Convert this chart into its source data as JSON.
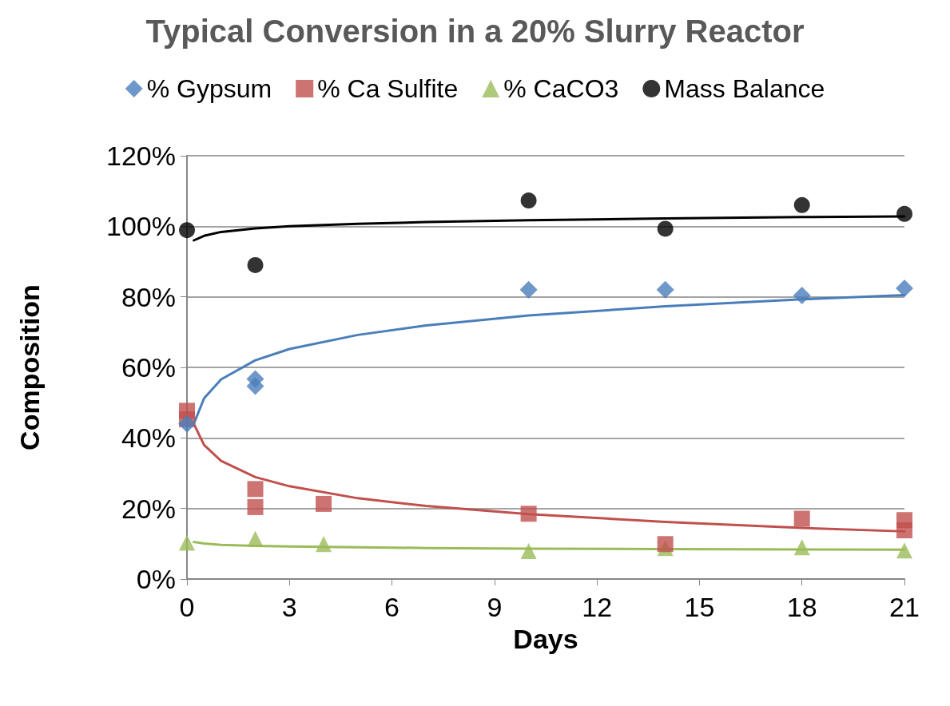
{
  "chart_data": {
    "type": "scatter",
    "title": "Typical Conversion in a 20% Slurry Reactor",
    "xlabel": "Days",
    "ylabel": "Composition",
    "xlim": [
      0,
      21
    ],
    "xticks": [
      0,
      3,
      6,
      9,
      12,
      15,
      18,
      21
    ],
    "ylim": [
      0,
      120
    ],
    "yticks": [
      {
        "value": 0,
        "label": "0%"
      },
      {
        "value": 20,
        "label": "20%"
      },
      {
        "value": 40,
        "label": "40%"
      },
      {
        "value": 60,
        "label": "60%"
      },
      {
        "value": 80,
        "label": "80%"
      },
      {
        "value": 100,
        "label": "100%"
      },
      {
        "value": 120,
        "label": "120%"
      }
    ],
    "grid": "y",
    "legend": "top",
    "series": [
      {
        "name": "% Gypsum",
        "color": "#4a7ebb",
        "marker": "diamond",
        "x": [
          0,
          2,
          2,
          10,
          14,
          18,
          21
        ],
        "values": [
          44,
          56.7,
          54.7,
          82,
          82,
          80.4,
          82.4
        ]
      },
      {
        "name": "% Ca Sulfite",
        "color": "#c0504d",
        "marker": "square",
        "x": [
          0,
          0,
          2,
          2,
          4,
          10,
          14,
          18,
          21,
          21
        ],
        "values": [
          47.7,
          45.3,
          25.5,
          20.4,
          21.3,
          18.5,
          9.9,
          17.1,
          16.7,
          13.8
        ]
      },
      {
        "name": "% CaCO3",
        "color": "#9bbb59",
        "marker": "triangle",
        "x": [
          0,
          2,
          4,
          10,
          14,
          18,
          21
        ],
        "values": [
          10.3,
          11.4,
          9.9,
          7.9,
          8.8,
          9,
          8.1
        ]
      },
      {
        "name": "Mass Balance",
        "color": "#000000",
        "marker": "circle",
        "x": [
          0,
          2,
          10,
          14,
          18,
          21
        ],
        "values": [
          98.9,
          89,
          107.3,
          99.3,
          106,
          103.5
        ]
      },
      {
        "type": "line",
        "color": "#4a7ebb",
        "marker": "none",
        "x": [
          0.2,
          0.5,
          1,
          2,
          3,
          5,
          7,
          10,
          14,
          18,
          21
        ],
        "values": [
          44,
          51.2,
          56.6,
          62,
          65.2,
          69.2,
          71.9,
          74.7,
          77.3,
          79.3,
          80.5
        ]
      },
      {
        "type": "line",
        "color": "#c0504d",
        "marker": "none",
        "x": [
          0.2,
          0.5,
          1,
          2,
          3,
          5,
          7,
          10,
          14,
          18,
          21
        ],
        "values": [
          44,
          38,
          33.5,
          28.9,
          26.3,
          22.9,
          20.7,
          18.4,
          16.2,
          14.5,
          13.5
        ]
      },
      {
        "type": "line",
        "color": "#9bbb59",
        "marker": "none",
        "x": [
          0.2,
          0.5,
          1,
          2,
          3,
          5,
          7,
          10,
          14,
          18,
          21
        ],
        "values": [
          10.5,
          10.1,
          9.7,
          9.4,
          9.2,
          9,
          8.8,
          8.6,
          8.5,
          8.4,
          8.3
        ]
      },
      {
        "type": "line",
        "color": "#000000",
        "marker": "none",
        "x": [
          0.2,
          0.5,
          1,
          2,
          3,
          5,
          7,
          10,
          14,
          18,
          21
        ],
        "values": [
          96,
          97.3,
          98.4,
          99.4,
          100,
          100.7,
          101.2,
          101.7,
          102.2,
          102.6,
          102.8
        ]
      }
    ]
  }
}
